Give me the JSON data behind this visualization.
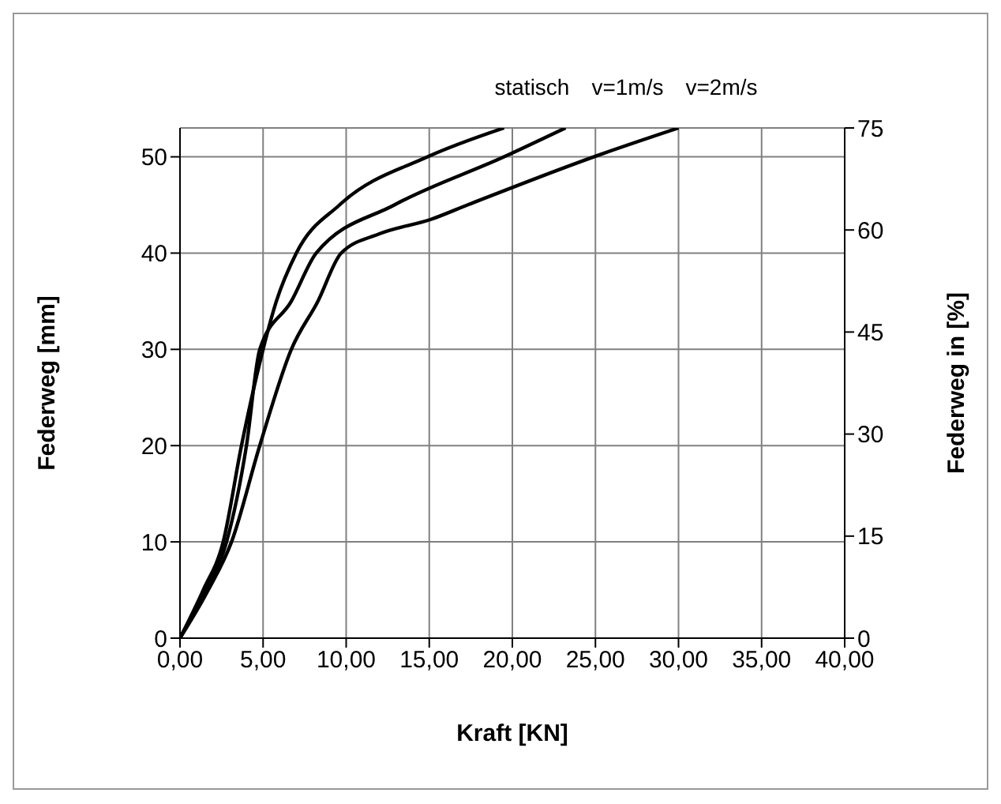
{
  "chart_data": {
    "type": "line",
    "xlabel": "Kraft [KN]",
    "ylabel": "Federweg [mm]",
    "y2label": "Federweg in [%]",
    "xlim": [
      0,
      40
    ],
    "xticks": [
      {
        "value": 0,
        "label": "0,00"
      },
      {
        "value": 5,
        "label": "5,00"
      },
      {
        "value": 10,
        "label": "10,00"
      },
      {
        "value": 15,
        "label": "15,00"
      },
      {
        "value": 20,
        "label": "20,00"
      },
      {
        "value": 25,
        "label": "25,00"
      },
      {
        "value": 30,
        "label": "30,00"
      },
      {
        "value": 35,
        "label": "35,00"
      },
      {
        "value": 40,
        "label": "40,00"
      }
    ],
    "ylim": [
      0,
      53
    ],
    "yticks": [
      0,
      10,
      20,
      30,
      40,
      50
    ],
    "y2lim": [
      0,
      75
    ],
    "y2ticks": [
      0,
      15,
      30,
      45,
      60,
      75
    ],
    "grid": true,
    "marker": "none",
    "line_style": "solid",
    "series": [
      {
        "name": "statisch",
        "color": "#000000",
        "x": [
          0,
          1.4,
          2.6,
          3.7,
          5.0,
          5.8,
          7.0,
          9.6,
          14.9,
          19.5
        ],
        "values": [
          0,
          5,
          10,
          20,
          30,
          35,
          40,
          45,
          50,
          53
        ]
      },
      {
        "name": "v=1m/s",
        "color": "#000000",
        "x": [
          0,
          1.5,
          2.8,
          4.0,
          4.8,
          6.7,
          8.2,
          12.9,
          19.5,
          23.2
        ],
        "values": [
          0,
          5,
          10,
          20,
          30,
          35,
          40,
          45,
          50,
          53
        ]
      },
      {
        "name": "v=2m/s",
        "color": "#000000",
        "x": [
          0,
          1.7,
          3.1,
          4.8,
          6.7,
          8.3,
          9.7,
          12.0,
          15.1,
          17.3,
          24.9,
          30.0
        ],
        "values": [
          0,
          5,
          10,
          20,
          30,
          35,
          40,
          42,
          43.5,
          45,
          50,
          53
        ]
      }
    ]
  }
}
